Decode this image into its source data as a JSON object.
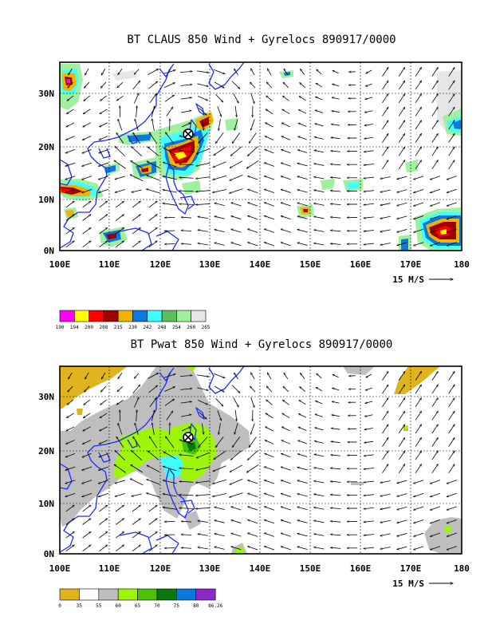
{
  "panels": [
    {
      "title": "BT CLAUS 850 Wind + Gyrelocs 890917/0000",
      "x_ticks": [
        "100E",
        "110E",
        "120E",
        "130E",
        "140E",
        "150E",
        "160E",
        "170E",
        "180"
      ],
      "y_ticks": [
        "0N",
        "10N",
        "20N",
        "30N"
      ],
      "vector_ref": "15 M/S",
      "colorbar": {
        "colors": [
          "#ff00ff",
          "#ffff00",
          "#ff0000",
          "#a00000",
          "#f0b400",
          "#0a78dc",
          "#40ffff",
          "#5cbf5c",
          "#a0f0a0",
          "#e6e6e6"
        ],
        "labels": [
          "190",
          "194",
          "200",
          "208",
          "215",
          "230",
          "242",
          "248",
          "254",
          "260",
          "265"
        ]
      },
      "cyclone_marker": {
        "lon": 126,
        "lat": 22
      }
    },
    {
      "title": "BT Pwat 850 Wind + Gyrelocs 890917/0000",
      "x_ticks": [
        "100E",
        "110E",
        "120E",
        "130E",
        "140E",
        "150E",
        "160E",
        "170E",
        "180"
      ],
      "y_ticks": [
        "0N",
        "10N",
        "20N",
        "30N"
      ],
      "vector_ref": "15 M/S",
      "colorbar": {
        "colors": [
          "#e0b41e",
          "#ffffff",
          "#bebebe",
          "#9ef50a",
          "#4ac20a",
          "#0a780a",
          "#0a78dc",
          "#8c28c8"
        ],
        "labels": [
          "0",
          "35",
          "55",
          "60",
          "65",
          "70",
          "75",
          "80",
          "86.26"
        ]
      },
      "cyclone_marker": {
        "lon": 126,
        "lat": 22
      }
    }
  ],
  "colors": {
    "coastline": "#1c2cff",
    "frame": "#000000"
  }
}
